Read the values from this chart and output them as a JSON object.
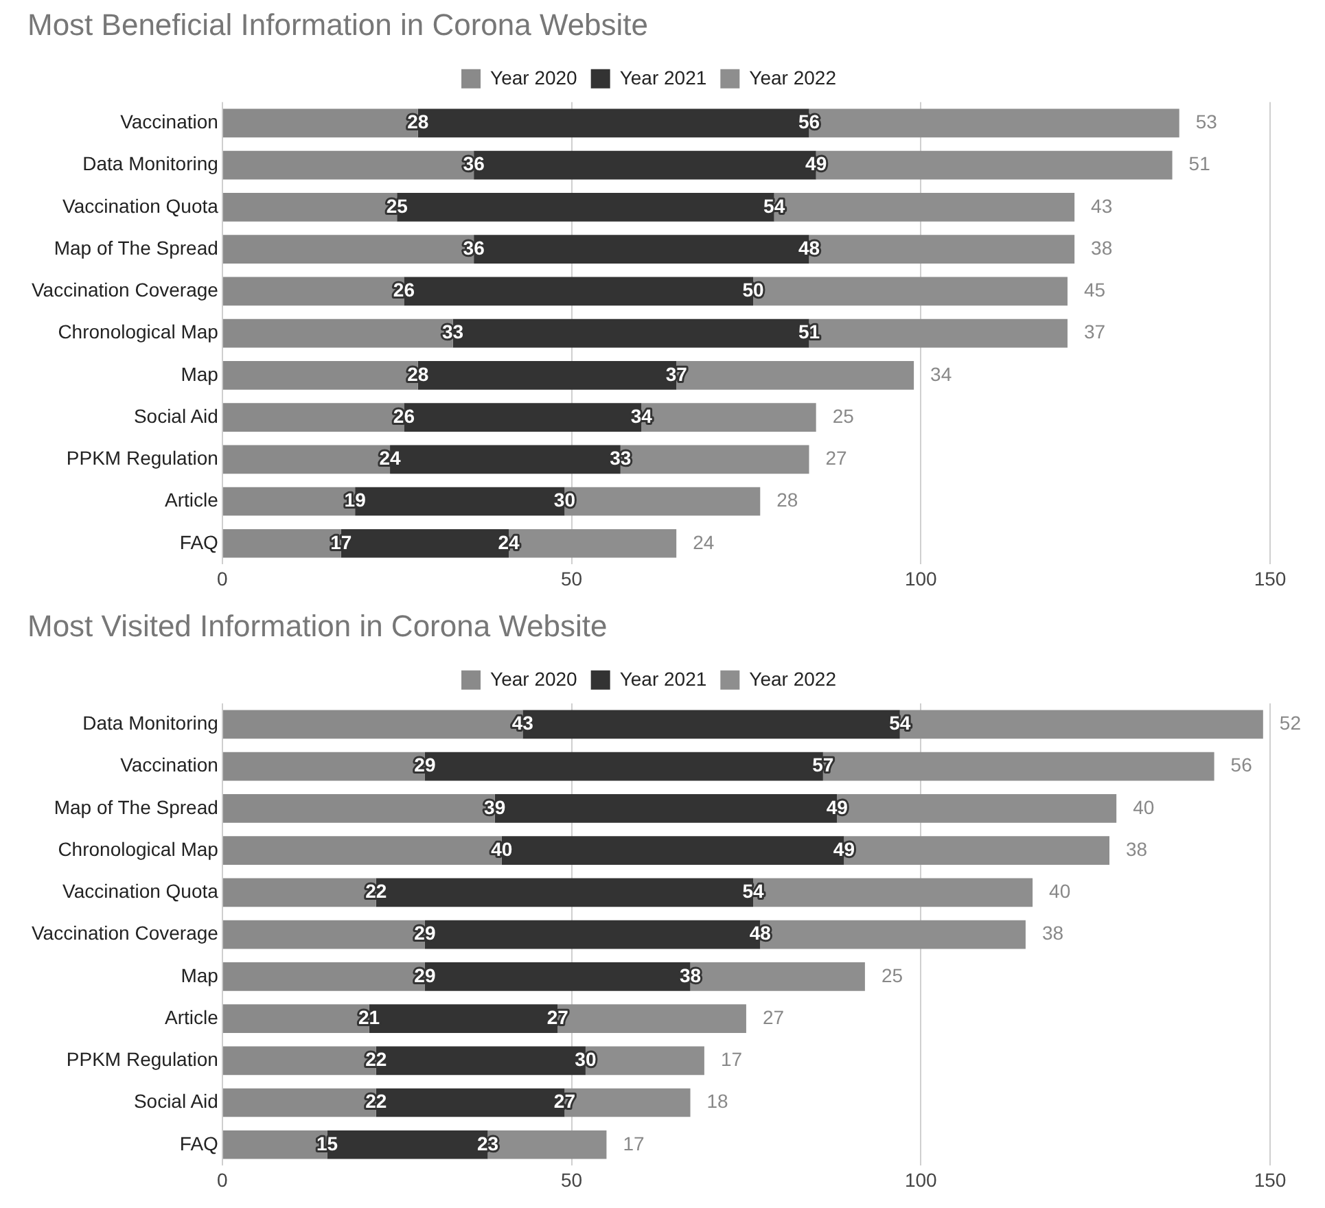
{
  "chart_data": [
    {
      "type": "bar",
      "title": "Most Beneficial Information in Corona Website",
      "orientation": "horizontal",
      "stacked": true,
      "categories": [
        "Vaccination",
        "Data Monitoring",
        "Vaccination Quota",
        "Map of The Spread",
        "Vaccination Coverage",
        "Chronological Map",
        "Map",
        "Social Aid",
        "PPKM Regulation",
        "Article",
        "FAQ"
      ],
      "series": [
        {
          "name": "Year 2020",
          "color": "#8a8a8a",
          "values": [
            28,
            36,
            25,
            36,
            26,
            33,
            28,
            26,
            24,
            19,
            17
          ]
        },
        {
          "name": "Year 2021",
          "color": "#333333",
          "values": [
            56,
            49,
            54,
            48,
            50,
            51,
            37,
            34,
            33,
            30,
            24
          ]
        },
        {
          "name": "Year 2022",
          "color": "#8e8e8e",
          "values": [
            53,
            51,
            43,
            38,
            45,
            37,
            34,
            25,
            27,
            28,
            24
          ]
        }
      ],
      "xlim": [
        0,
        150
      ],
      "xticks": [
        0,
        50,
        100,
        150
      ],
      "grid": "x",
      "legend": "top",
      "data_labels": true
    },
    {
      "type": "bar",
      "title": "Most Visited Information in Corona Website",
      "orientation": "horizontal",
      "stacked": true,
      "categories": [
        "Data Monitoring",
        "Vaccination",
        "Map of The Spread",
        "Chronological Map",
        "Vaccination Quota",
        "Vaccination Coverage",
        "Map",
        "Article",
        "PPKM Regulation",
        "Social Aid",
        "FAQ"
      ],
      "series": [
        {
          "name": "Year 2020",
          "color": "#8a8a8a",
          "values": [
            43,
            29,
            39,
            40,
            22,
            29,
            29,
            21,
            22,
            22,
            15
          ]
        },
        {
          "name": "Year 2021",
          "color": "#333333",
          "values": [
            54,
            57,
            49,
            49,
            54,
            48,
            38,
            27,
            30,
            27,
            23
          ]
        },
        {
          "name": "Year 2022",
          "color": "#8e8e8e",
          "values": [
            52,
            56,
            40,
            38,
            40,
            38,
            25,
            27,
            17,
            18,
            17
          ]
        }
      ],
      "xlim": [
        0,
        150
      ],
      "xticks": [
        0,
        50,
        100,
        150
      ],
      "grid": "x",
      "legend": "top",
      "data_labels": true
    }
  ]
}
